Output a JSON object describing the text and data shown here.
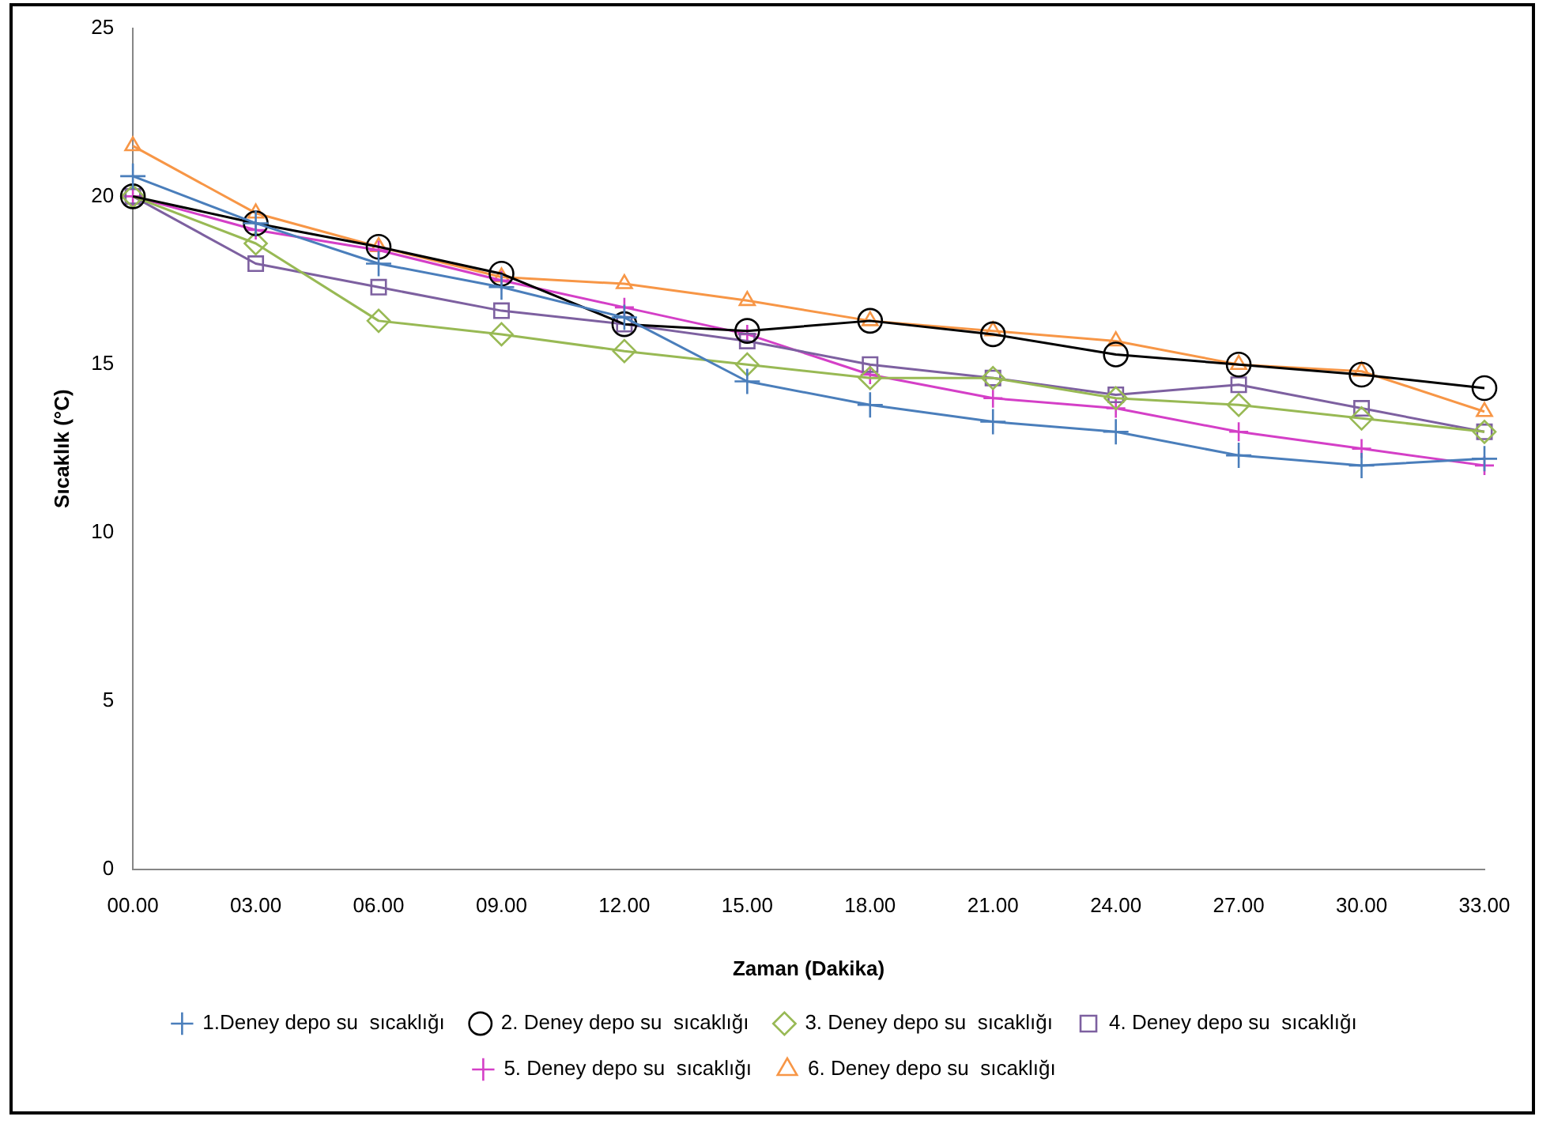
{
  "chart_data": {
    "type": "line",
    "xlabel": "Zaman (Dakika)",
    "ylabel": "Sıcaklık (°C)",
    "categories": [
      "00.00",
      "03.00",
      "06.00",
      "09.00",
      "12.00",
      "15.00",
      "18.00",
      "21.00",
      "24.00",
      "27.00",
      "30.00",
      "33.00"
    ],
    "ylim": [
      0,
      25
    ],
    "yticks": [
      0,
      5,
      10,
      15,
      20,
      25
    ],
    "grid": false,
    "legend": "bottom",
    "line_style": "solid",
    "series": [
      {
        "name": "1.Deney depo su  sıcaklığı",
        "color": "#4a7ebb",
        "marker": "cross",
        "values": [
          20.6,
          19.2,
          18.0,
          17.3,
          16.4,
          14.5,
          13.8,
          13.3,
          13.0,
          12.3,
          12.0,
          12.2
        ]
      },
      {
        "name": "2. Deney depo su  sıcaklığı",
        "color": "#000000",
        "marker": "circle",
        "values": [
          20.0,
          19.2,
          18.5,
          17.7,
          16.2,
          16.0,
          16.3,
          15.9,
          15.3,
          15.0,
          14.7,
          14.3
        ]
      },
      {
        "name": "3. Deney depo su  sıcaklığı",
        "color": "#98b954",
        "marker": "diamond",
        "values": [
          20.0,
          18.6,
          16.3,
          15.9,
          15.4,
          15.0,
          14.6,
          14.6,
          14.0,
          13.8,
          13.4,
          13.0
        ]
      },
      {
        "name": "4. Deney depo su  sıcaklığı",
        "color": "#7d60a0",
        "marker": "square",
        "values": [
          20.0,
          18.0,
          17.3,
          16.6,
          16.2,
          15.7,
          15.0,
          14.6,
          14.1,
          14.4,
          13.7,
          13.0
        ]
      },
      {
        "name": "5. Deney depo su  sıcaklığı",
        "color": "#d43fc7",
        "marker": "cross",
        "values": [
          20.0,
          19.0,
          18.4,
          17.5,
          16.7,
          15.9,
          14.7,
          14.0,
          13.7,
          13.0,
          12.5,
          12.0
        ]
      },
      {
        "name": "6. Deney depo su  sıcaklığı",
        "color": "#f79646",
        "marker": "triangle",
        "values": [
          21.5,
          19.5,
          18.5,
          17.6,
          17.4,
          16.9,
          16.3,
          16.0,
          15.7,
          15.0,
          14.8,
          13.6
        ]
      }
    ]
  }
}
